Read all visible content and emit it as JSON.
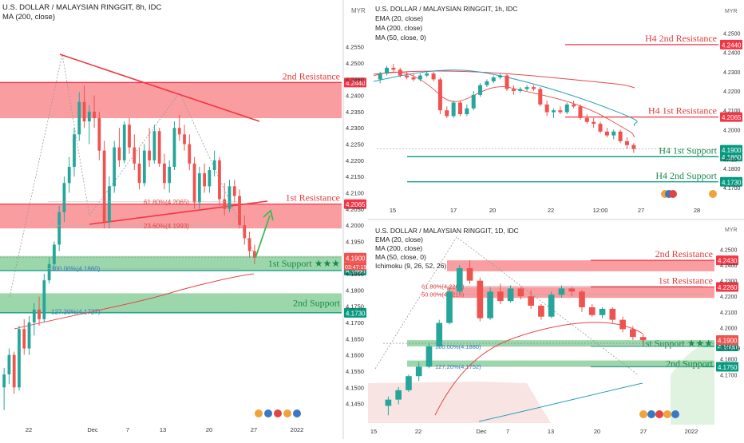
{
  "colors": {
    "up": "#26a69a",
    "down": "#ef5350",
    "resistance_zone": "#f77c80",
    "support_zone": "#79c98f",
    "resistance_line": "#f23645",
    "support_line": "#089981",
    "ma200": "#e5484d",
    "ma50": "#2a9dbf",
    "ichimoku_cloud": "#f7d9d9",
    "arrow": "#3cba54",
    "axis_text": "#333333"
  },
  "chart_data": [
    {
      "id": "main",
      "type": "candlestick",
      "title": "U.S. DOLLAR / MALAYSIAN RINGGIT, 8h, IDC",
      "indicators": [
        "MA (200, close)"
      ],
      "currency": "MYR",
      "ylim": [
        4.139,
        4.265
      ],
      "y_ticks": [
        "4.2550",
        "4.2500",
        "4.2450",
        "4.2400",
        "4.2350",
        "4.2300",
        "4.2250",
        "4.2200",
        "4.2150",
        "4.2100",
        "4.2050",
        "4.2000",
        "4.1950",
        "4.1900",
        "4.1850",
        "4.1800",
        "4.1750",
        "4.1700",
        "4.1650",
        "4.1600",
        "4.1550",
        "4.1500",
        "4.1450"
      ],
      "x_ticks": [
        "22",
        "Dec",
        "7",
        "13",
        "20",
        "27",
        "2022"
      ],
      "zones": [
        {
          "label": "2nd Resistance",
          "low": 4.233,
          "high": 4.244,
          "kind": "resistance",
          "price_tag": "4.2440"
        },
        {
          "label": "1st Resistance",
          "low": 4.199,
          "high": 4.2065,
          "kind": "resistance",
          "price_tag": "4.2065"
        },
        {
          "label": "1st Support ★★★",
          "low": 4.186,
          "high": 4.1905,
          "kind": "support",
          "price_tag": "4.1860"
        },
        {
          "label": "2nd Support",
          "low": 4.173,
          "high": 4.179,
          "kind": "support",
          "price_tag": "4.1730"
        }
      ],
      "fib_labels": [
        {
          "text": "61.80%(4.2065)",
          "y": 4.2072
        },
        {
          "text": "23.60%(4.1993)",
          "y": 4.1998
        },
        {
          "text": "100.00%(4.1860)",
          "y": 4.1866
        },
        {
          "text": "127.20%(4.1727)",
          "y": 4.1733
        }
      ],
      "last_price": "4.1900",
      "countdown": "03:47:19",
      "candles_ohlc": [
        [
          4.15,
          4.156,
          4.143,
          4.154
        ],
        [
          4.154,
          4.162,
          4.151,
          4.16
        ],
        [
          4.16,
          4.161,
          4.148,
          4.15
        ],
        [
          4.15,
          4.169,
          4.149,
          4.168
        ],
        [
          4.168,
          4.171,
          4.16,
          4.162
        ],
        [
          4.162,
          4.172,
          4.16,
          4.17
        ],
        [
          4.17,
          4.176,
          4.166,
          4.174
        ],
        [
          4.174,
          4.178,
          4.169,
          4.171
        ],
        [
          4.171,
          4.185,
          4.17,
          4.183
        ],
        [
          4.183,
          4.19,
          4.182,
          4.188
        ],
        [
          4.188,
          4.195,
          4.186,
          4.194
        ],
        [
          4.194,
          4.206,
          4.192,
          4.204
        ],
        [
          4.204,
          4.215,
          4.201,
          4.213
        ],
        [
          4.213,
          4.221,
          4.21,
          4.218
        ],
        [
          4.218,
          4.23,
          4.215,
          4.228
        ],
        [
          4.228,
          4.241,
          4.226,
          4.238
        ],
        [
          4.238,
          4.243,
          4.23,
          4.232
        ],
        [
          4.232,
          4.237,
          4.225,
          4.235
        ],
        [
          4.235,
          4.24,
          4.23,
          4.233
        ],
        [
          4.233,
          4.235,
          4.22,
          4.223
        ],
        [
          4.223,
          4.226,
          4.199,
          4.201
        ],
        [
          4.201,
          4.215,
          4.199,
          4.212
        ],
        [
          4.212,
          4.226,
          4.21,
          4.224
        ],
        [
          4.224,
          4.23,
          4.218,
          4.22
        ],
        [
          4.22,
          4.232,
          4.219,
          4.231
        ],
        [
          4.231,
          4.233,
          4.222,
          4.224
        ],
        [
          4.224,
          4.228,
          4.217,
          4.219
        ],
        [
          4.219,
          4.224,
          4.211,
          4.213
        ],
        [
          4.213,
          4.225,
          4.212,
          4.223
        ],
        [
          4.223,
          4.23,
          4.218,
          4.22
        ],
        [
          4.22,
          4.231,
          4.219,
          4.229
        ],
        [
          4.229,
          4.23,
          4.218,
          4.219
        ],
        [
          4.219,
          4.222,
          4.211,
          4.213
        ],
        [
          4.213,
          4.22,
          4.21,
          4.218
        ],
        [
          4.218,
          4.232,
          4.217,
          4.23
        ],
        [
          4.23,
          4.234,
          4.226,
          4.228
        ],
        [
          4.228,
          4.231,
          4.223,
          4.225
        ],
        [
          4.225,
          4.228,
          4.217,
          4.219
        ],
        [
          4.219,
          4.221,
          4.205,
          4.207
        ],
        [
          4.207,
          4.218,
          4.205,
          4.216
        ],
        [
          4.216,
          4.219,
          4.21,
          4.212
        ],
        [
          4.212,
          4.218,
          4.21,
          4.217
        ],
        [
          4.217,
          4.223,
          4.215,
          4.22
        ],
        [
          4.22,
          4.221,
          4.206,
          4.208
        ],
        [
          4.208,
          4.213,
          4.203,
          4.205
        ],
        [
          4.205,
          4.214,
          4.204,
          4.212
        ],
        [
          4.212,
          4.214,
          4.207,
          4.209
        ],
        [
          4.209,
          4.211,
          4.199,
          4.2
        ],
        [
          4.2,
          4.203,
          4.194,
          4.196
        ],
        [
          4.196,
          4.198,
          4.19,
          4.192
        ],
        [
          4.192,
          4.194,
          4.188,
          4.19
        ]
      ]
    },
    {
      "id": "h1",
      "type": "candlestick",
      "title": "U.S. DOLLAR / MALAYSIAN RINGGIT, 1h, IDC",
      "indicators": [
        "EMA (20, close)",
        "MA (200, close)",
        "MA (50, close, 0)"
      ],
      "currency": "MYR",
      "ylim": [
        4.163,
        4.265
      ],
      "y_ticks": [
        "4.2500",
        "4.2400",
        "4.2300",
        "4.2200",
        "4.2100",
        "4.2000",
        "4.1900",
        "4.1800",
        "4.1700"
      ],
      "x_ticks": [
        "15",
        "17",
        "20",
        "22",
        "12:00",
        "27",
        "28"
      ],
      "levels": [
        {
          "label": "H4 2nd Resistance",
          "y": 4.244,
          "kind": "resistance",
          "price_tag": "4.2440"
        },
        {
          "label": "H4 1st Resistance",
          "y": 4.2065,
          "kind": "resistance",
          "price_tag": "4.2065"
        },
        {
          "label": "H4 1st Support",
          "y": 4.186,
          "kind": "support",
          "price_tag": "4.1860"
        },
        {
          "label": "H4 2nd Support",
          "y": 4.173,
          "kind": "support",
          "price_tag": "4.1730"
        }
      ],
      "last_price": "4.1900",
      "countdown": "47:19",
      "candles_ohlc": [
        [
          4.226,
          4.23,
          4.224,
          4.229
        ],
        [
          4.229,
          4.233,
          4.228,
          4.232
        ],
        [
          4.232,
          4.234,
          4.23,
          4.231
        ],
        [
          4.231,
          4.232,
          4.227,
          4.228
        ],
        [
          4.228,
          4.23,
          4.226,
          4.227
        ],
        [
          4.227,
          4.229,
          4.225,
          4.226
        ],
        [
          4.226,
          4.229,
          4.225,
          4.228
        ],
        [
          4.228,
          4.23,
          4.227,
          4.229
        ],
        [
          4.229,
          4.23,
          4.225,
          4.226
        ],
        [
          4.226,
          4.227,
          4.208,
          4.21
        ],
        [
          4.21,
          4.212,
          4.206,
          4.207
        ],
        [
          4.207,
          4.215,
          4.206,
          4.214
        ],
        [
          4.214,
          4.215,
          4.207,
          4.208
        ],
        [
          4.208,
          4.213,
          4.207,
          4.211
        ],
        [
          4.211,
          4.22,
          4.21,
          4.218
        ],
        [
          4.218,
          4.224,
          4.217,
          4.223
        ],
        [
          4.223,
          4.226,
          4.222,
          4.225
        ],
        [
          4.225,
          4.228,
          4.224,
          4.227
        ],
        [
          4.227,
          4.229,
          4.226,
          4.228
        ],
        [
          4.228,
          4.229,
          4.22,
          4.221
        ],
        [
          4.221,
          4.223,
          4.218,
          4.22
        ],
        [
          4.22,
          4.222,
          4.219,
          4.221
        ],
        [
          4.221,
          4.223,
          4.22,
          4.222
        ],
        [
          4.222,
          4.223,
          4.22,
          4.221
        ],
        [
          4.221,
          4.222,
          4.212,
          4.213
        ],
        [
          4.213,
          4.215,
          4.207,
          4.209
        ],
        [
          4.209,
          4.211,
          4.206,
          4.21
        ],
        [
          4.21,
          4.212,
          4.208,
          4.209
        ],
        [
          4.209,
          4.214,
          4.208,
          4.213
        ],
        [
          4.213,
          4.215,
          4.211,
          4.212
        ],
        [
          4.212,
          4.213,
          4.205,
          4.206
        ],
        [
          4.206,
          4.208,
          4.203,
          4.204
        ],
        [
          4.204,
          4.206,
          4.201,
          4.203
        ],
        [
          4.203,
          4.204,
          4.198,
          4.199
        ],
        [
          4.199,
          4.201,
          4.196,
          4.197
        ],
        [
          4.197,
          4.2,
          4.195,
          4.199
        ],
        [
          4.199,
          4.2,
          4.193,
          4.194
        ],
        [
          4.194,
          4.196,
          4.19,
          4.192
        ],
        [
          4.192,
          4.193,
          4.188,
          4.19
        ]
      ]
    },
    {
      "id": "d1",
      "type": "candlestick",
      "title": "U.S. DOLLAR / MALAYSIAN RINGGIT, 1D, IDC",
      "indicators": [
        "EMA (20, close)",
        "MA (200, close)",
        "MA (50, close, 0)",
        "Ichimoku (9, 26, 52, 26)"
      ],
      "currency": "MYR",
      "ylim": [
        4.138,
        4.265
      ],
      "y_ticks": [
        "4.2500",
        "4.2400",
        "4.2300",
        "4.2200",
        "4.2100",
        "4.2000",
        "4.1900",
        "4.1800",
        "4.1700"
      ],
      "x_ticks": [
        "15",
        "22",
        "Dec",
        "7",
        "13",
        "20",
        "27",
        "2022"
      ],
      "zones": [
        {
          "label": "2nd Resistance",
          "low": 4.236,
          "high": 4.243,
          "kind": "resistance",
          "price_tag": "4.2430"
        },
        {
          "label": "1st Resistance",
          "low": 4.219,
          "high": 4.226,
          "kind": "resistance",
          "price_tag": "4.2260"
        },
        {
          "label": "1st Support ★★★",
          "low": 4.188,
          "high": 4.192,
          "kind": "support",
          "price_tag": "4.1880"
        },
        {
          "label": "2nd Support",
          "low": 4.175,
          "high": 4.179,
          "kind": "support",
          "price_tag": "4.1750"
        }
      ],
      "fib_labels": [
        {
          "text": "61.80%(4.2265)",
          "y": 4.2265
        },
        {
          "text": "50.00%(4.2215)",
          "y": 4.2215
        },
        {
          "text": "100.00%(4.1880)",
          "y": 4.188
        },
        {
          "text": "127.20%(4.1752)",
          "y": 4.1752
        }
      ],
      "last_price": "4.1900",
      "countdown": "19:47:19",
      "candles_ohlc": [
        [
          4.15,
          4.156,
          4.144,
          4.154
        ],
        [
          4.154,
          4.162,
          4.151,
          4.16
        ],
        [
          4.16,
          4.17,
          4.159,
          4.169
        ],
        [
          4.169,
          4.178,
          4.166,
          4.175
        ],
        [
          4.175,
          4.19,
          4.174,
          4.188
        ],
        [
          4.188,
          4.205,
          4.187,
          4.203
        ],
        [
          4.203,
          4.225,
          4.202,
          4.223
        ],
        [
          4.223,
          4.24,
          4.221,
          4.238
        ],
        [
          4.238,
          4.243,
          4.228,
          4.23
        ],
        [
          4.23,
          4.232,
          4.204,
          4.206
        ],
        [
          4.206,
          4.226,
          4.205,
          4.223
        ],
        [
          4.223,
          4.228,
          4.215,
          4.217
        ],
        [
          4.217,
          4.227,
          4.216,
          4.225
        ],
        [
          4.225,
          4.226,
          4.218,
          4.22
        ],
        [
          4.22,
          4.224,
          4.212,
          4.214
        ],
        [
          4.214,
          4.215,
          4.205,
          4.207
        ],
        [
          4.207,
          4.223,
          4.206,
          4.221
        ],
        [
          4.221,
          4.227,
          4.219,
          4.225
        ],
        [
          4.225,
          4.226,
          4.22,
          4.223
        ],
        [
          4.223,
          4.224,
          4.21,
          4.213
        ],
        [
          4.213,
          4.215,
          4.207,
          4.208
        ],
        [
          4.208,
          4.213,
          4.206,
          4.212
        ],
        [
          4.212,
          4.213,
          4.203,
          4.205
        ],
        [
          4.205,
          4.207,
          4.197,
          4.199
        ],
        [
          4.199,
          4.201,
          4.192,
          4.194
        ],
        [
          4.194,
          4.196,
          4.19,
          4.192
        ]
      ]
    }
  ]
}
